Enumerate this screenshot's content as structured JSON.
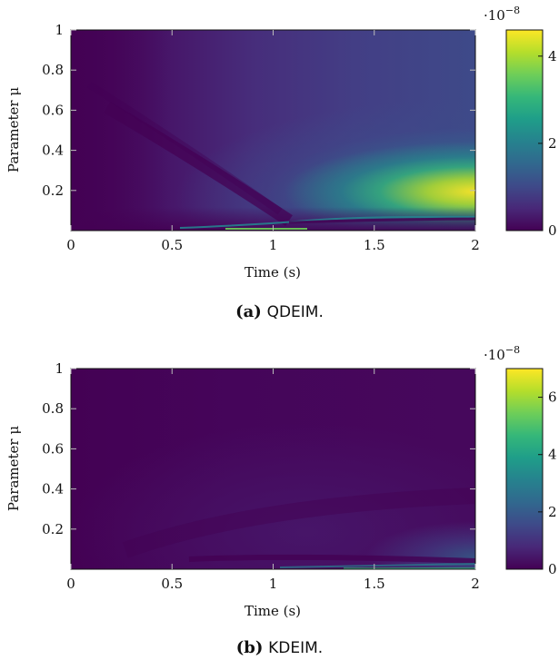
{
  "colors": {
    "viridis": [
      "#440154",
      "#482878",
      "#3e4a89",
      "#31688e",
      "#26828e",
      "#1f9e89",
      "#35b779",
      "#6ece58",
      "#b5de2b",
      "#fde725"
    ],
    "axis": "#111111"
  },
  "chart_data": [
    {
      "type": "heatmap",
      "xlabel": "Time (s)",
      "ylabel": "Parameter μ",
      "xlim": [
        0,
        2
      ],
      "ylim": [
        0,
        1
      ],
      "xticks": [
        "0",
        "0.5",
        "1",
        "1.5",
        "2"
      ],
      "yticks": [
        "0.2",
        "0.4",
        "0.6",
        "0.8",
        "1"
      ],
      "colorbar": {
        "min": 0,
        "max": 4.6,
        "ticks": [
          "0",
          "2",
          "4"
        ],
        "tick_values": [
          0,
          2,
          4
        ],
        "exponent": "·10",
        "exponent_power": "−8"
      },
      "caption_label": "(a)",
      "caption_text": "QDEIM."
    },
    {
      "type": "heatmap",
      "xlabel": "Time (s)",
      "ylabel": "Parameter μ",
      "xlim": [
        0,
        2
      ],
      "ylim": [
        0,
        1
      ],
      "xticks": [
        "0",
        "0.5",
        "1",
        "1.5",
        "2"
      ],
      "yticks": [
        "0.2",
        "0.4",
        "0.6",
        "0.8",
        "1"
      ],
      "colorbar": {
        "min": 0,
        "max": 7,
        "ticks": [
          "0",
          "2",
          "4",
          "6"
        ],
        "tick_values": [
          0,
          2,
          4,
          6
        ],
        "exponent": "·10",
        "exponent_power": "−8"
      },
      "caption_label": "(b)",
      "caption_text": "KDEIM."
    }
  ]
}
